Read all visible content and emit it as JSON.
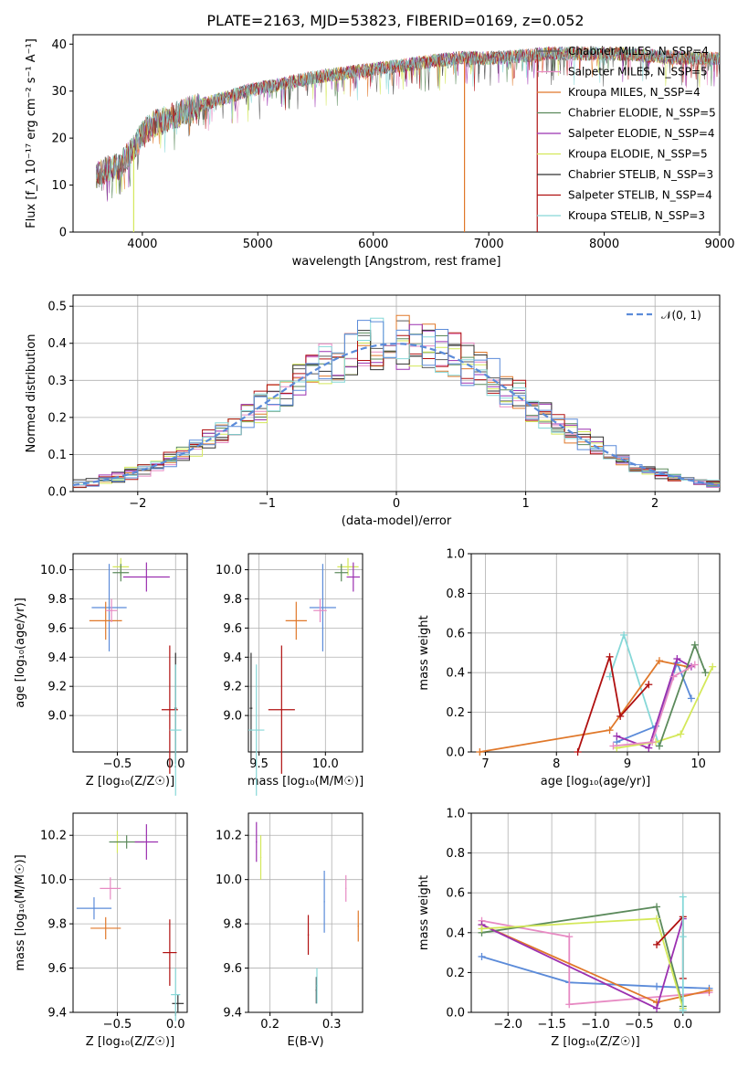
{
  "colors": {
    "chabrier_miles": "#5a5a5a",
    "salpeter_miles": "#e78ac3",
    "kroupa_miles": "#e0782a",
    "chabrier_elodie": "#5b8a5b",
    "salpeter_elodie": "#9b30b0",
    "kroupa_elodie": "#d4e85a",
    "chabrier_stelib": "#303030",
    "salpeter_stelib": "#b01010",
    "kroupa_stelib": "#86d8d8",
    "normal": "#5b8bd9",
    "blue": "#5b8bd9"
  },
  "chart_data": [
    {
      "id": "spectrum",
      "type": "line",
      "title": "PLATE=2163, MJD=53823, FIBERID=0169, z=0.052",
      "xlabel": "wavelength [Angstrom, rest frame]",
      "ylabel": "Flux [f_λ 10⁻¹⁷ erg cm⁻² s⁻¹ A⁻¹]",
      "xlim": [
        3400,
        9000
      ],
      "ylim": [
        0,
        42
      ],
      "xticks": [
        "4000",
        "5000",
        "6000",
        "7000",
        "8000",
        "9000"
      ],
      "yticks": [
        "0",
        "10",
        "20",
        "30",
        "40"
      ],
      "legend_loc": "upper-right",
      "legend": [
        {
          "label": "Chabrier MILES, N_SSP=4",
          "color": "chabrier_miles"
        },
        {
          "label": "Salpeter MILES, N_SSP=5",
          "color": "salpeter_miles"
        },
        {
          "label": "Kroupa MILES, N_SSP=4",
          "color": "kroupa_miles"
        },
        {
          "label": "Chabrier ELODIE, N_SSP=5",
          "color": "chabrier_elodie"
        },
        {
          "label": "Salpeter ELODIE, N_SSP=4",
          "color": "salpeter_elodie"
        },
        {
          "label": "Kroupa ELODIE, N_SSP=5",
          "color": "kroupa_elodie"
        },
        {
          "label": "Chabrier STELIB, N_SSP=3",
          "color": "chabrier_stelib"
        },
        {
          "label": "Salpeter STELIB, N_SSP=4",
          "color": "salpeter_stelib"
        },
        {
          "label": "Kroupa STELIB, N_SSP=3",
          "color": "kroupa_stelib"
        }
      ],
      "continuum": [
        [
          3600,
          12
        ],
        [
          3700,
          13.5
        ],
        [
          3800,
          14
        ],
        [
          3900,
          17
        ],
        [
          4000,
          21
        ],
        [
          4100,
          23
        ],
        [
          4300,
          25
        ],
        [
          4500,
          27
        ],
        [
          4700,
          28.5
        ],
        [
          4900,
          30
        ],
        [
          5200,
          31.5
        ],
        [
          5500,
          33
        ],
        [
          5800,
          34
        ],
        [
          6100,
          35
        ],
        [
          6400,
          36
        ],
        [
          6700,
          37
        ],
        [
          7000,
          37
        ],
        [
          7300,
          37.5
        ],
        [
          7500,
          38
        ],
        [
          7800,
          38
        ],
        [
          8100,
          38
        ],
        [
          8400,
          37.5
        ],
        [
          8700,
          37
        ],
        [
          9000,
          37
        ]
      ]
    },
    {
      "id": "residuals",
      "type": "histogram",
      "xlabel": "(data-model)/error",
      "ylabel": "Normed distribution",
      "xlim": [
        -2.5,
        2.5
      ],
      "ylim": [
        0,
        0.53
      ],
      "xticks": [
        "−2",
        "−1",
        "0",
        "1",
        "2"
      ],
      "yticks": [
        "0.0",
        "0.1",
        "0.2",
        "0.3",
        "0.4",
        "0.5"
      ],
      "legend_loc": "upper-right",
      "legend": [
        {
          "label": "𝒩(0, 1)",
          "color": "normal"
        }
      ],
      "bin_width": 0.1
    },
    {
      "id": "age_vs_Z",
      "type": "errorbar",
      "xlabel": "Z [log₁₀(Z/Z☉)]",
      "ylabel": "age  [log₁₀(age/yr)]",
      "xlim": [
        -0.88,
        0.1
      ],
      "ylim": [
        8.75,
        10.11
      ],
      "xticks": [
        "−0.5",
        "0.0"
      ],
      "yticks": [
        "9.0",
        "9.2",
        "9.4",
        "9.6",
        "9.8",
        "10.0"
      ],
      "points": [
        {
          "c": "blue",
          "x": -0.57,
          "y": 9.74,
          "xe": 0.15,
          "ye": 0.3
        },
        {
          "c": "kroupa_miles",
          "x": -0.6,
          "y": 9.65,
          "xe": 0.14,
          "ye": 0.13
        },
        {
          "c": "salpeter_miles",
          "x": -0.55,
          "y": 9.72,
          "xe": 0.05,
          "ye": 0.08
        },
        {
          "c": "kroupa_elodie",
          "x": -0.47,
          "y": 10.02,
          "xe": 0.07,
          "ye": 0.06
        },
        {
          "c": "chabrier_elodie",
          "x": -0.47,
          "y": 9.98,
          "xe": 0.07,
          "ye": 0.06
        },
        {
          "c": "salpeter_elodie",
          "x": -0.25,
          "y": 9.95,
          "xe": 0.2,
          "ye": 0.1
        },
        {
          "c": "salpeter_stelib",
          "x": -0.05,
          "y": 9.04,
          "xe": 0.07,
          "ye": 0.44
        },
        {
          "c": "chabrier_stelib",
          "x": 0.0,
          "y": 9.05,
          "xe": 0.01,
          "ye": 0.38
        },
        {
          "c": "kroupa_stelib",
          "x": 0.0,
          "y": 8.9,
          "xe": 0.05,
          "ye": 0.45
        }
      ]
    },
    {
      "id": "age_vs_mass",
      "type": "errorbar",
      "xlabel": "mass [log₁₀(M/M☉)]",
      "ylabel": "",
      "xlim": [
        9.42,
        10.28
      ],
      "ylim": [
        8.75,
        10.11
      ],
      "xticks": [
        "9.5",
        "10.0"
      ],
      "yticks": [
        "9.0",
        "9.2",
        "9.4",
        "9.6",
        "9.8",
        "10.0"
      ],
      "points": [
        {
          "c": "blue",
          "x": 9.98,
          "y": 9.74,
          "xe": 0.1,
          "ye": 0.3
        },
        {
          "c": "kroupa_miles",
          "x": 9.78,
          "y": 9.65,
          "xe": 0.08,
          "ye": 0.13
        },
        {
          "c": "salpeter_miles",
          "x": 9.96,
          "y": 9.72,
          "xe": 0.05,
          "ye": 0.08
        },
        {
          "c": "kroupa_elodie",
          "x": 10.17,
          "y": 10.02,
          "xe": 0.08,
          "ye": 0.06
        },
        {
          "c": "chabrier_elodie",
          "x": 10.12,
          "y": 9.98,
          "xe": 0.05,
          "ye": 0.06
        },
        {
          "c": "salpeter_elodie",
          "x": 10.21,
          "y": 9.95,
          "xe": 0.05,
          "ye": 0.1
        },
        {
          "c": "salpeter_stelib",
          "x": 9.67,
          "y": 9.04,
          "xe": 0.1,
          "ye": 0.44
        },
        {
          "c": "chabrier_stelib",
          "x": 9.44,
          "y": 9.05,
          "xe": 0.01,
          "ye": 0.38
        },
        {
          "c": "kroupa_stelib",
          "x": 9.48,
          "y": 8.9,
          "xe": 0.06,
          "ye": 0.45
        }
      ]
    },
    {
      "id": "weight_vs_age",
      "type": "line",
      "xlabel": "age  [log₁₀(age/yr)]",
      "ylabel": "mass weight",
      "xlim": [
        6.8,
        10.3
      ],
      "ylim": [
        0,
        1.0
      ],
      "xticks": [
        "7",
        "8",
        "9",
        "10"
      ],
      "yticks": [
        "0.0",
        "0.2",
        "0.4",
        "0.6",
        "0.8",
        "1.0"
      ],
      "series": [
        {
          "c": "kroupa_stelib",
          "points": [
            [
              8.75,
              0.38
            ],
            [
              8.95,
              0.59
            ],
            [
              9.45,
              0.03
            ]
          ]
        },
        {
          "c": "blue",
          "points": [
            [
              8.85,
              0.05
            ],
            [
              9.4,
              0.13
            ],
            [
              9.7,
              0.45
            ],
            [
              9.9,
              0.27
            ]
          ]
        },
        {
          "c": "kroupa_miles",
          "points": [
            [
              6.92,
              0.0
            ],
            [
              8.75,
              0.11
            ],
            [
              9.45,
              0.46
            ],
            [
              9.85,
              0.43
            ]
          ]
        },
        {
          "c": "salpeter_stelib",
          "points": [
            [
              8.3,
              0.0
            ],
            [
              8.75,
              0.48
            ],
            [
              8.9,
              0.18
            ],
            [
              9.3,
              0.34
            ]
          ]
        },
        {
          "c": "salpeter_elodie",
          "points": [
            [
              8.85,
              0.08
            ],
            [
              9.3,
              0.02
            ],
            [
              9.7,
              0.47
            ],
            [
              9.9,
              0.43
            ]
          ]
        },
        {
          "c": "kroupa_elodie",
          "points": [
            [
              8.85,
              0.02
            ],
            [
              9.4,
              0.05
            ],
            [
              9.75,
              0.09
            ],
            [
              10.2,
              0.43
            ]
          ]
        },
        {
          "c": "chabrier_elodie",
          "points": [
            [
              9.45,
              0.03
            ],
            [
              9.95,
              0.54
            ],
            [
              10.1,
              0.4
            ]
          ]
        },
        {
          "c": "salpeter_miles",
          "points": [
            [
              8.8,
              0.03
            ],
            [
              9.35,
              0.05
            ],
            [
              9.65,
              0.38
            ],
            [
              9.95,
              0.44
            ]
          ]
        }
      ]
    },
    {
      "id": "mass_vs_Z",
      "type": "errorbar",
      "xlabel": "Z [log₁₀(Z/Z☉)]",
      "ylabel": "mass [log₁₀(M/M☉)]",
      "xlim": [
        -0.88,
        0.1
      ],
      "ylim": [
        9.4,
        10.3
      ],
      "xticks": [
        "−0.5",
        "0.0"
      ],
      "yticks": [
        "9.4",
        "9.6",
        "9.8",
        "10.0",
        "10.2"
      ],
      "points": [
        {
          "c": "blue",
          "x": -0.7,
          "y": 9.87,
          "xe": 0.15,
          "ye": 0.05
        },
        {
          "c": "kroupa_miles",
          "x": -0.6,
          "y": 9.78,
          "xe": 0.13,
          "ye": 0.05
        },
        {
          "c": "salpeter_miles",
          "x": -0.56,
          "y": 9.96,
          "xe": 0.09,
          "ye": 0.05
        },
        {
          "c": "kroupa_elodie",
          "x": -0.5,
          "y": 10.17,
          "xe": 0.03,
          "ye": 0.05
        },
        {
          "c": "chabrier_elodie",
          "x": -0.42,
          "y": 10.17,
          "xe": 0.15,
          "ye": 0.03
        },
        {
          "c": "salpeter_elodie",
          "x": -0.25,
          "y": 10.17,
          "xe": 0.1,
          "ye": 0.08
        },
        {
          "c": "salpeter_stelib",
          "x": -0.05,
          "y": 9.67,
          "xe": 0.06,
          "ye": 0.15
        },
        {
          "c": "chabrier_stelib",
          "x": 0.02,
          "y": 9.44,
          "xe": 0.05,
          "ye": 0.04
        },
        {
          "c": "kroupa_stelib",
          "x": 0.0,
          "y": 9.48,
          "xe": 0.04,
          "ye": 0.12
        }
      ]
    },
    {
      "id": "mass_vs_EBV",
      "type": "errorbar",
      "xlabel": "E(B-V)",
      "ylabel": "",
      "xlim": [
        0.165,
        0.35
      ],
      "ylim": [
        9.4,
        10.3
      ],
      "xticks": [
        "0.2",
        "0.3"
      ],
      "yticks": [
        "9.4",
        "9.6",
        "9.8",
        "10.0",
        "10.2"
      ],
      "points": [
        {
          "c": "salpeter_elodie",
          "x": 0.178,
          "y": 10.17,
          "xe": 0.001,
          "ye": 0.09
        },
        {
          "c": "kroupa_elodie",
          "x": 0.185,
          "y": 10.1,
          "xe": 0.001,
          "ye": 0.1
        },
        {
          "c": "salpeter_stelib",
          "x": 0.262,
          "y": 9.75,
          "xe": 0.001,
          "ye": 0.09
        },
        {
          "c": "chabrier_stelib",
          "x": 0.275,
          "y": 9.5,
          "xe": 0.001,
          "ye": 0.06
        },
        {
          "c": "kroupa_stelib",
          "x": 0.276,
          "y": 9.52,
          "xe": 0.001,
          "ye": 0.08
        },
        {
          "c": "blue",
          "x": 0.288,
          "y": 9.9,
          "xe": 0.001,
          "ye": 0.14
        },
        {
          "c": "salpeter_miles",
          "x": 0.323,
          "y": 9.96,
          "xe": 0.001,
          "ye": 0.06
        },
        {
          "c": "kroupa_miles",
          "x": 0.343,
          "y": 9.79,
          "xe": 0.001,
          "ye": 0.07
        }
      ]
    },
    {
      "id": "weight_vs_Z",
      "type": "line",
      "xlabel": "Z [log₁₀(Z/Z☉)]",
      "ylabel": "mass weight",
      "xlim": [
        -2.42,
        0.42
      ],
      "ylim": [
        0,
        1.0
      ],
      "xticks": [
        "−2.0",
        "−1.5",
        "−1.0",
        "−0.5",
        "0.0"
      ],
      "yticks": [
        "0.0",
        "0.2",
        "0.4",
        "0.6",
        "0.8",
        "1.0"
      ],
      "series": [
        {
          "c": "blue",
          "points": [
            [
              -2.3,
              0.28
            ],
            [
              -1.3,
              0.15
            ],
            [
              -0.3,
              0.13
            ],
            [
              0.3,
              0.12
            ]
          ]
        },
        {
          "c": "salpeter_miles",
          "points": [
            [
              -2.3,
              0.46
            ],
            [
              -1.3,
              0.38
            ],
            [
              -1.3,
              0.04
            ],
            [
              0.3,
              0.1
            ]
          ]
        },
        {
          "c": "kroupa_miles",
          "points": [
            [
              -2.3,
              0.44
            ],
            [
              -0.3,
              0.05
            ],
            [
              0.3,
              0.11
            ]
          ]
        },
        {
          "c": "chabrier_elodie",
          "points": [
            [
              -2.3,
              0.4
            ],
            [
              -0.3,
              0.53
            ],
            [
              0.0,
              0.03
            ]
          ]
        },
        {
          "c": "salpeter_elodie",
          "points": [
            [
              -2.3,
              0.44
            ],
            [
              -0.3,
              0.02
            ],
            [
              0.0,
              0.47
            ]
          ]
        },
        {
          "c": "kroupa_elodie",
          "points": [
            [
              -2.3,
              0.42
            ],
            [
              -0.3,
              0.47
            ],
            [
              0.0,
              0.02
            ]
          ]
        },
        {
          "c": "salpeter_stelib",
          "points": [
            [
              -0.3,
              0.34
            ],
            [
              0.0,
              0.48
            ],
            [
              0.0,
              0.17
            ]
          ]
        },
        {
          "c": "kroupa_stelib",
          "points": [
            [
              0.0,
              0.58
            ],
            [
              0.0,
              0.38
            ],
            [
              0.0,
              0.01
            ]
          ]
        }
      ]
    }
  ]
}
